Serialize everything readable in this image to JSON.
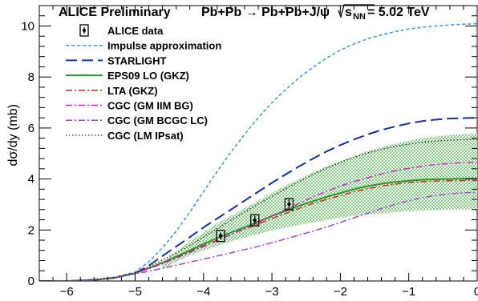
{
  "chart_data": {
    "type": "line",
    "title_left": "ALICE Preliminary",
    "title_process": "Pb+Pb → Pb+Pb+J/ψ",
    "title_energy_sqrt": "s",
    "title_energy_sub": "NN",
    "title_energy_value": " = 5.02 TeV",
    "xlabel": "",
    "ylabel": "dσ/dy (mb)",
    "xlim": [
      -6.4,
      0
    ],
    "ylim": [
      0,
      10.8
    ],
    "xticks": [
      -6,
      -5,
      -4,
      -3,
      -2,
      -1,
      0
    ],
    "xtick_labels": [
      "−6",
      "−5",
      "−4",
      "−3",
      "−2",
      "−1",
      "0"
    ],
    "yticks": [
      0,
      2,
      4,
      6,
      8,
      10
    ],
    "ytick_labels": [
      "0",
      "2",
      "4",
      "6",
      "8",
      "10"
    ],
    "legend_position": "top-left",
    "data": {
      "name": "ALICE data",
      "points": [
        {
          "x": -3.75,
          "y": 1.77,
          "err": 0.13
        },
        {
          "x": -3.25,
          "y": 2.38,
          "err": 0.18
        },
        {
          "x": -2.75,
          "y": 3.01,
          "err": 0.22
        }
      ]
    },
    "band": {
      "name": "EPS09 LO (GKZ)",
      "color": "#44bb44",
      "x": [
        -4.6,
        -4.4,
        -4.2,
        -4.0,
        -3.8,
        -3.6,
        -3.4,
        -3.2,
        -3.0,
        -2.8,
        -2.6,
        -2.4,
        -2.2,
        -2.0,
        -1.8,
        -1.6,
        -1.4,
        -1.2,
        -1.0,
        -0.8,
        -0.6,
        -0.4,
        -0.2,
        0.0
      ],
      "low": [
        0.45,
        0.75,
        1.0,
        1.2,
        1.38,
        1.55,
        1.7,
        1.84,
        1.98,
        2.1,
        2.2,
        2.3,
        2.4,
        2.48,
        2.55,
        2.6,
        2.65,
        2.7,
        2.73,
        2.76,
        2.78,
        2.8,
        2.81,
        2.82
      ],
      "high": [
        0.7,
        1.15,
        1.55,
        1.9,
        2.25,
        2.55,
        2.85,
        3.15,
        3.45,
        3.75,
        4.0,
        4.25,
        4.5,
        4.7,
        4.9,
        5.1,
        5.25,
        5.38,
        5.5,
        5.6,
        5.67,
        5.72,
        5.76,
        5.78
      ]
    },
    "series": [
      {
        "name": "Impulse approximation",
        "color": "#3399ee",
        "dash": "4,3",
        "width": 1.5,
        "x": [
          -6.4,
          -6.0,
          -5.6,
          -5.3,
          -5.0,
          -4.8,
          -4.6,
          -4.4,
          -4.2,
          -4.0,
          -3.8,
          -3.6,
          -3.4,
          -3.2,
          -3.0,
          -2.8,
          -2.6,
          -2.4,
          -2.2,
          -2.0,
          -1.8,
          -1.6,
          -1.4,
          -1.2,
          -1.0,
          -0.8,
          -0.6,
          -0.4,
          -0.2,
          0.0
        ],
        "y": [
          0.0,
          0.0,
          0.05,
          0.15,
          0.35,
          0.75,
          1.3,
          1.95,
          2.7,
          3.5,
          4.3,
          5.05,
          5.75,
          6.4,
          7.0,
          7.5,
          7.98,
          8.38,
          8.75,
          9.05,
          9.3,
          9.5,
          9.65,
          9.78,
          9.88,
          9.95,
          10.0,
          10.04,
          10.07,
          10.09
        ]
      },
      {
        "name": "STARLIGHT",
        "color": "#1133aa",
        "dash": "14,6",
        "width": 2,
        "x": [
          -6.4,
          -6.0,
          -5.6,
          -5.3,
          -5.0,
          -4.8,
          -4.6,
          -4.4,
          -4.2,
          -4.0,
          -3.8,
          -3.6,
          -3.4,
          -3.2,
          -3.0,
          -2.8,
          -2.6,
          -2.4,
          -2.2,
          -2.0,
          -1.8,
          -1.6,
          -1.4,
          -1.2,
          -1.0,
          -0.8,
          -0.6,
          -0.4,
          -0.2,
          0.0
        ],
        "y": [
          0.0,
          0.0,
          0.05,
          0.13,
          0.3,
          0.6,
          0.98,
          1.35,
          1.72,
          2.1,
          2.45,
          2.8,
          3.15,
          3.5,
          3.85,
          4.18,
          4.5,
          4.8,
          5.08,
          5.33,
          5.55,
          5.75,
          5.92,
          6.06,
          6.18,
          6.27,
          6.33,
          6.37,
          6.39,
          6.4
        ]
      },
      {
        "name": "EPS09 LO (GKZ)",
        "color": "#229922",
        "dash": "",
        "width": 2,
        "x": [
          -6.4,
          -6.0,
          -5.6,
          -5.3,
          -5.0,
          -4.8,
          -4.6,
          -4.4,
          -4.2,
          -4.0,
          -3.8,
          -3.6,
          -3.4,
          -3.2,
          -3.0,
          -2.8,
          -2.6,
          -2.4,
          -2.2,
          -2.0,
          -1.8,
          -1.6,
          -1.4,
          -1.2,
          -1.0,
          -0.8,
          -0.6,
          -0.4,
          -0.2,
          0.0
        ],
        "y": [
          0.0,
          0.0,
          0.04,
          0.12,
          0.3,
          0.5,
          0.72,
          0.95,
          1.2,
          1.45,
          1.68,
          1.9,
          2.1,
          2.32,
          2.55,
          2.75,
          2.95,
          3.13,
          3.3,
          3.45,
          3.6,
          3.72,
          3.81,
          3.88,
          3.93,
          3.97,
          3.99,
          4.0,
          4.01,
          4.02
        ]
      },
      {
        "name": "LTA (GKZ)",
        "color": "#dd2222",
        "dash": "8,3,2,3",
        "width": 1.5,
        "x": [
          -6.4,
          -6.0,
          -5.6,
          -5.3,
          -5.0,
          -4.8,
          -4.6,
          -4.4,
          -4.2,
          -4.0,
          -3.8,
          -3.6,
          -3.4,
          -3.2,
          -3.0,
          -2.8,
          -2.6,
          -2.4,
          -2.2,
          -2.0,
          -1.8,
          -1.6,
          -1.4,
          -1.2,
          -1.0,
          -0.8,
          -0.6,
          -0.4,
          -0.2,
          0.0
        ],
        "y": [
          0.0,
          0.0,
          0.04,
          0.12,
          0.3,
          0.5,
          0.7,
          0.92,
          1.15,
          1.38,
          1.6,
          1.82,
          2.03,
          2.24,
          2.45,
          2.65,
          2.85,
          3.04,
          3.2,
          3.35,
          3.5,
          3.62,
          3.72,
          3.8,
          3.86,
          3.9,
          3.92,
          3.93,
          3.94,
          3.94
        ]
      },
      {
        "name": "CGC (GM IIM BG)",
        "color": "#cc22cc",
        "dash": "8,3,2,3",
        "width": 1.5,
        "x": [
          -6.4,
          -6.0,
          -5.6,
          -5.3,
          -5.0,
          -4.8,
          -4.6,
          -4.4,
          -4.2,
          -4.0,
          -3.8,
          -3.6,
          -3.4,
          -3.2,
          -3.0,
          -2.8,
          -2.6,
          -2.4,
          -2.2,
          -2.0,
          -1.8,
          -1.6,
          -1.4,
          -1.2,
          -1.0,
          -0.8,
          -0.6,
          -0.4,
          -0.2,
          0.0
        ],
        "y": [
          0.0,
          0.0,
          0.04,
          0.12,
          0.3,
          0.48,
          0.68,
          0.9,
          1.12,
          1.35,
          1.58,
          1.82,
          2.05,
          2.3,
          2.55,
          2.8,
          3.05,
          3.3,
          3.52,
          3.72,
          3.9,
          4.05,
          4.2,
          4.32,
          4.42,
          4.5,
          4.57,
          4.61,
          4.64,
          4.65
        ]
      },
      {
        "name": "CGC (GM BCGC LC)",
        "color": "#aa44dd",
        "dash": "8,3,2,3",
        "width": 1.5,
        "x": [
          -6.4,
          -6.0,
          -5.6,
          -5.3,
          -5.0,
          -4.8,
          -4.6,
          -4.4,
          -4.2,
          -4.0,
          -3.8,
          -3.6,
          -3.4,
          -3.2,
          -3.0,
          -2.8,
          -2.6,
          -2.4,
          -2.2,
          -2.0,
          -1.8,
          -1.6,
          -1.4,
          -1.2,
          -1.0,
          -0.8,
          -0.6,
          -0.4,
          -0.2,
          0.0
        ],
        "y": [
          0.0,
          0.0,
          0.04,
          0.12,
          0.28,
          0.38,
          0.5,
          0.62,
          0.74,
          0.86,
          0.98,
          1.1,
          1.23,
          1.36,
          1.5,
          1.65,
          1.8,
          1.96,
          2.12,
          2.3,
          2.48,
          2.66,
          2.84,
          3.0,
          3.15,
          3.27,
          3.36,
          3.42,
          3.46,
          3.48
        ]
      },
      {
        "name": "CGC (LM IPsat)",
        "color": "#222222",
        "dash": "1.5,2.5",
        "width": 1.3,
        "x": [
          -6.4,
          -6.0,
          -5.6,
          -5.3,
          -5.0,
          -4.8,
          -4.6,
          -4.4,
          -4.2,
          -4.0,
          -3.8,
          -3.6,
          -3.4,
          -3.2,
          -3.0,
          -2.8,
          -2.6,
          -2.4,
          -2.2,
          -2.0,
          -1.8,
          -1.6,
          -1.4,
          -1.2,
          -1.0,
          -0.8,
          -0.6,
          -0.4,
          -0.2,
          0.0
        ],
        "y": [
          0.0,
          0.0,
          0.04,
          0.13,
          0.32,
          0.55,
          0.82,
          1.1,
          1.4,
          1.72,
          2.05,
          2.38,
          2.7,
          3.02,
          3.32,
          3.62,
          3.9,
          4.18,
          4.43,
          4.65,
          4.85,
          5.02,
          5.16,
          5.28,
          5.37,
          5.44,
          5.49,
          5.52,
          5.54,
          5.55
        ]
      }
    ],
    "legend": [
      {
        "label": "ALICE data",
        "style": "data"
      },
      {
        "label": "Impulse approximation",
        "color": "#3399ee",
        "dash": "4,3",
        "width": 1.5
      },
      {
        "label": "STARLIGHT",
        "color": "#1133aa",
        "dash": "14,6",
        "width": 2
      },
      {
        "label": "EPS09 LO (GKZ)",
        "color": "#229922",
        "dash": "",
        "width": 2
      },
      {
        "label": "LTA (GKZ)",
        "color": "#dd2222",
        "dash": "8,3,2,3",
        "width": 1.5
      },
      {
        "label": "CGC (GM IIM BG)",
        "color": "#cc22cc",
        "dash": "8,3,2,3",
        "width": 1.5
      },
      {
        "label": "CGC (GM BCGC LC)",
        "color": "#aa44dd",
        "dash": "8,3,2,3",
        "width": 1.5
      },
      {
        "label": "CGC (LM IPsat)",
        "color": "#222222",
        "dash": "1.5,2.5",
        "width": 1.3
      }
    ]
  }
}
